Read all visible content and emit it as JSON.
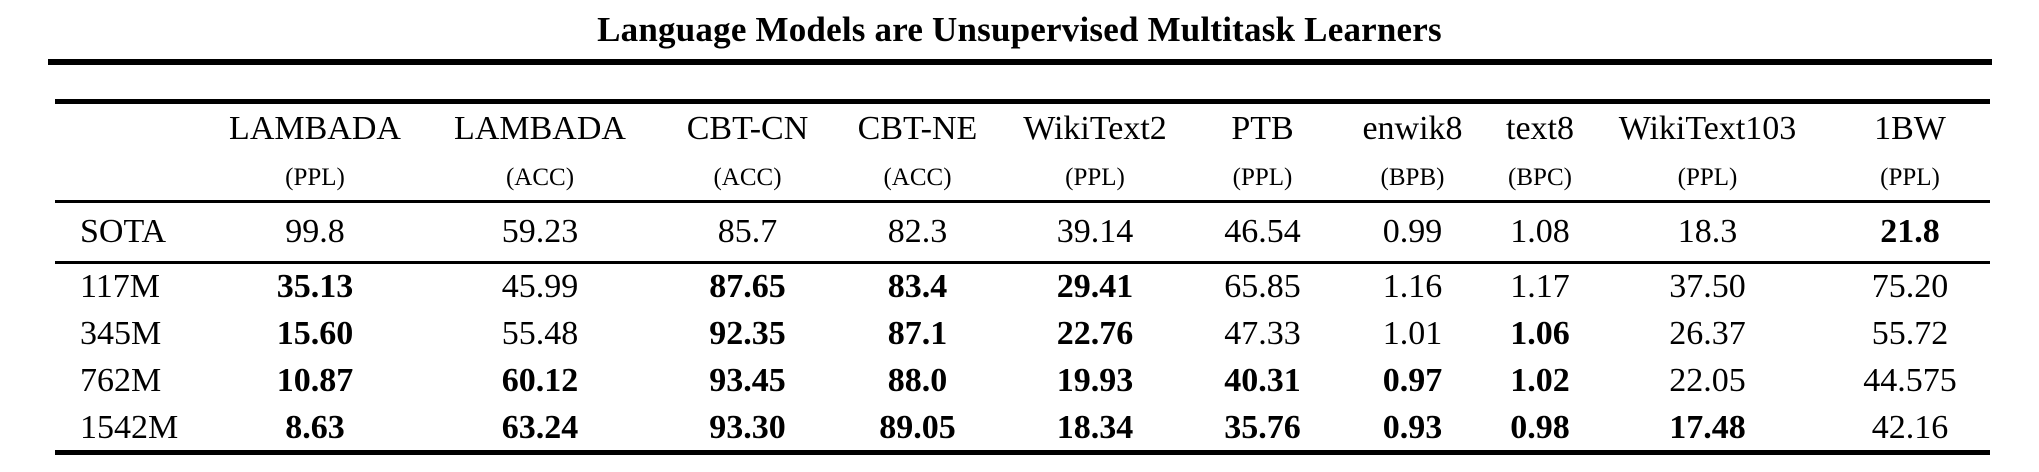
{
  "paper": {
    "running_title": "Language Models are Unsupervised Multitask Learners"
  },
  "table": {
    "columns": [
      {
        "name": "",
        "metric": ""
      },
      {
        "name": "LAMBADA",
        "metric": "(PPL)"
      },
      {
        "name": "LAMBADA",
        "metric": "(ACC)"
      },
      {
        "name": "CBT-CN",
        "metric": "(ACC)"
      },
      {
        "name": "CBT-NE",
        "metric": "(ACC)"
      },
      {
        "name": "WikiText2",
        "metric": "(PPL)"
      },
      {
        "name": "PTB",
        "metric": "(PPL)"
      },
      {
        "name": "enwik8",
        "metric": "(BPB)"
      },
      {
        "name": "text8",
        "metric": "(BPC)"
      },
      {
        "name": "WikiText103",
        "metric": "(PPL)"
      },
      {
        "name": "1BW",
        "metric": "(PPL)"
      }
    ],
    "rows": [
      {
        "label": "SOTA",
        "values": [
          "99.8",
          "59.23",
          "85.7",
          "82.3",
          "39.14",
          "46.54",
          "0.99",
          "1.08",
          "18.3",
          "21.8"
        ],
        "bold": [
          false,
          false,
          false,
          false,
          false,
          false,
          false,
          false,
          false,
          true
        ]
      },
      {
        "label": "117M",
        "values": [
          "35.13",
          "45.99",
          "87.65",
          "83.4",
          "29.41",
          "65.85",
          "1.16",
          "1.17",
          "37.50",
          "75.20"
        ],
        "bold": [
          true,
          false,
          true,
          true,
          true,
          false,
          false,
          false,
          false,
          false
        ]
      },
      {
        "label": "345M",
        "values": [
          "15.60",
          "55.48",
          "92.35",
          "87.1",
          "22.76",
          "47.33",
          "1.01",
          "1.06",
          "26.37",
          "55.72"
        ],
        "bold": [
          true,
          false,
          true,
          true,
          true,
          false,
          false,
          true,
          false,
          false
        ]
      },
      {
        "label": "762M",
        "values": [
          "10.87",
          "60.12",
          "93.45",
          "88.0",
          "19.93",
          "40.31",
          "0.97",
          "1.02",
          "22.05",
          "44.575"
        ],
        "bold": [
          true,
          true,
          true,
          true,
          true,
          true,
          true,
          true,
          false,
          false
        ]
      },
      {
        "label": "1542M",
        "values": [
          "8.63",
          "63.24",
          "93.30",
          "89.05",
          "18.34",
          "35.76",
          "0.93",
          "0.98",
          "17.48",
          "42.16"
        ],
        "bold": [
          true,
          true,
          true,
          true,
          true,
          true,
          true,
          true,
          true,
          false
        ]
      }
    ]
  }
}
